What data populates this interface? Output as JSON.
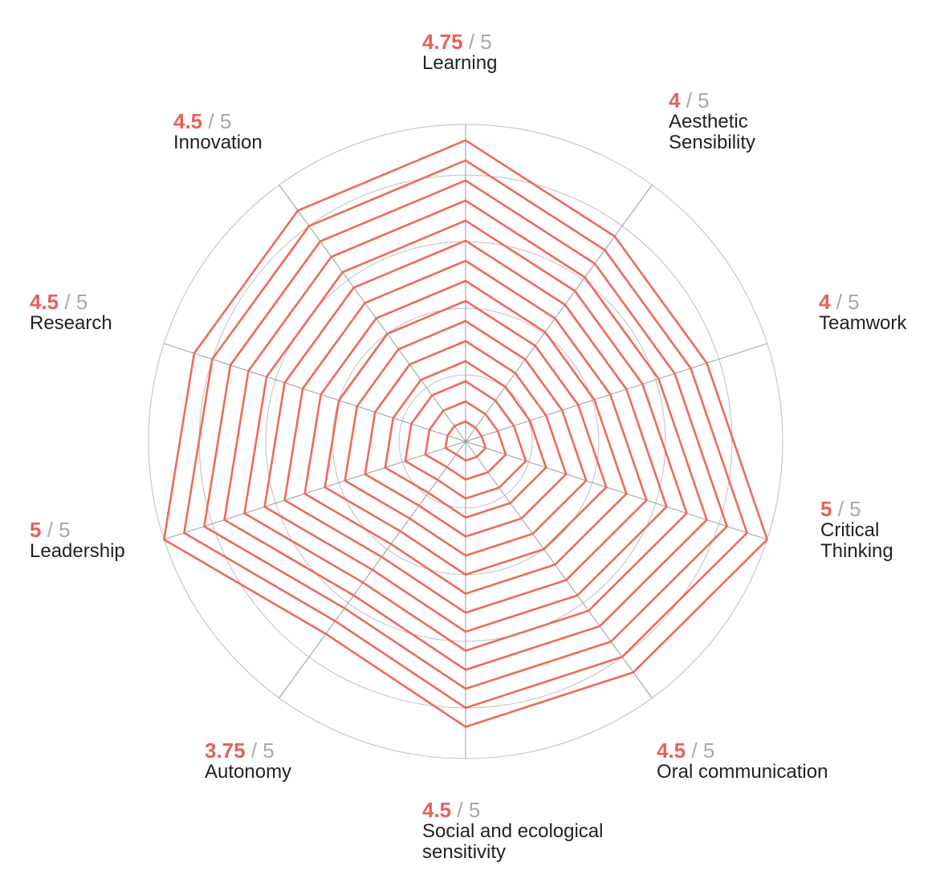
{
  "chart_data": {
    "type": "radar",
    "max_value": 5,
    "max_label": "/ 5",
    "axes": [
      {
        "label": "Learning",
        "value": "4.75"
      },
      {
        "label": "Aesthetic\nSensibility",
        "value": "4"
      },
      {
        "label": "Teamwork",
        "value": "4"
      },
      {
        "label": "Critical\nThinking",
        "value": "5"
      },
      {
        "label": "Oral communication",
        "value": "4.5"
      },
      {
        "label": "Social and ecological\nsensitivity",
        "value": "4.5"
      },
      {
        "label": "Autonomy",
        "value": "3.75"
      },
      {
        "label": "Leadership",
        "value": "5"
      },
      {
        "label": "Research",
        "value": "4.5"
      },
      {
        "label": "Innovation",
        "value": "4.5"
      }
    ],
    "nested_polygons": 15,
    "grid": true,
    "colors": {
      "series": "#ee6a5e",
      "score_text": "#e8605a",
      "max_text": "#a9a9a9",
      "grid": "#c8c8c8",
      "spokes": "#999999",
      "label_text": "#222222"
    }
  }
}
